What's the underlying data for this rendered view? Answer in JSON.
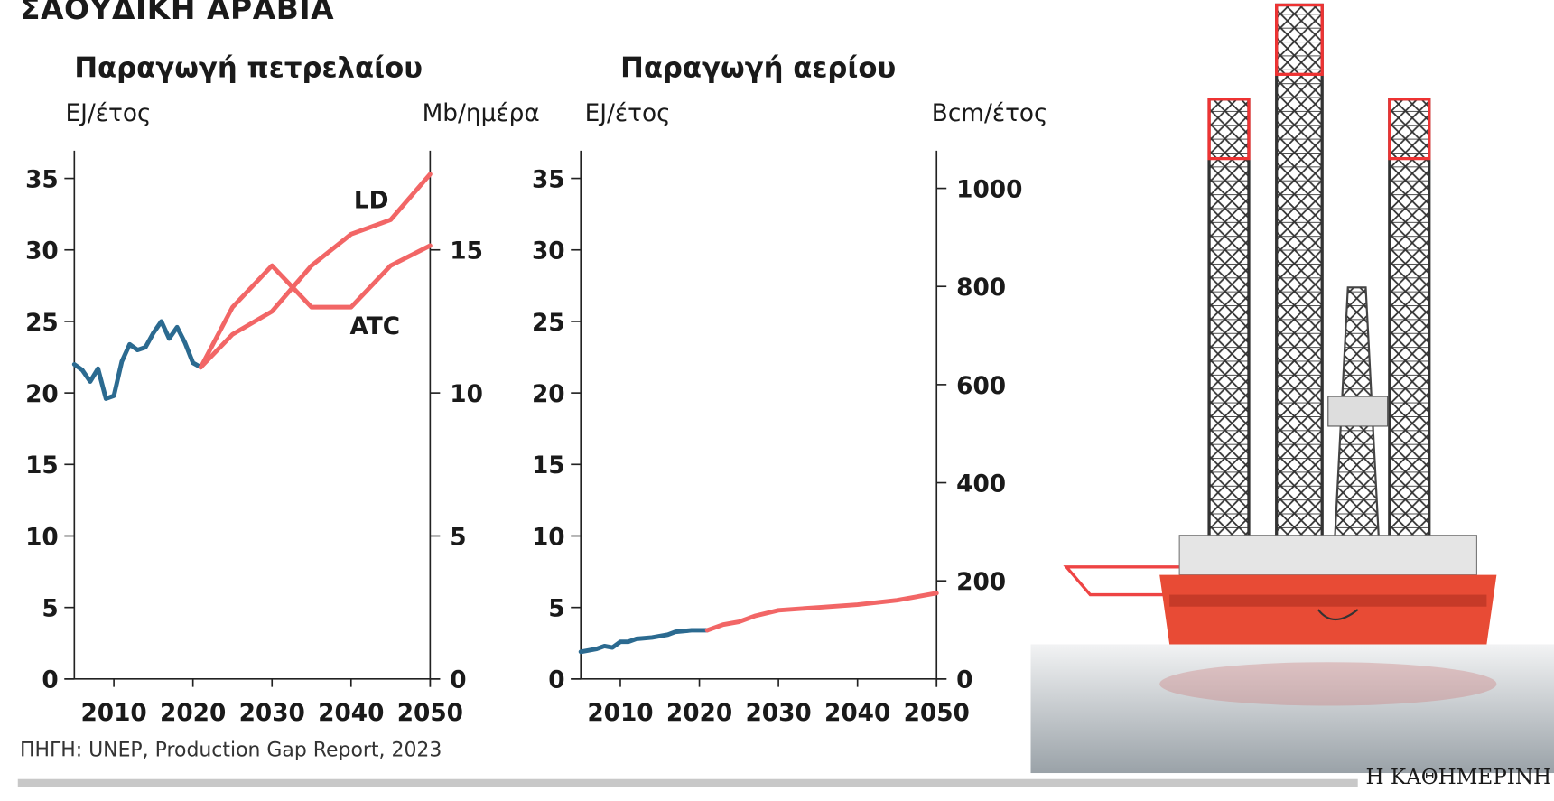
{
  "title": "ΣΑΟΥΔΙΚΗ ΑΡΑΒΙΑ",
  "source": "ΠΗΓΗ: UNEP, Production Gap Report, 2023",
  "logo": "Η ΚΑΘΗΜΕΡΙΝΗ",
  "colors": {
    "historical": "#2b6a90",
    "projection": "#f26666"
  },
  "chart_data": [
    {
      "type": "line",
      "title": "Παραγωγή πετρελαίου",
      "ylabel": "EJ/έτος",
      "ylabel_right": "Mb/ημέρα",
      "xlim": [
        2005,
        2050
      ],
      "ylim": [
        0,
        37
      ],
      "yticks": [
        0,
        5,
        10,
        15,
        20,
        25,
        30,
        35
      ],
      "yticks_right": [
        0,
        5,
        10,
        15
      ],
      "right_per_left": 0.5,
      "xticks": [
        2010,
        2020,
        2030,
        2040,
        2050
      ],
      "grid": false,
      "series": [
        {
          "kind": "historical",
          "x": [
            2005,
            2006,
            2007,
            2008,
            2009,
            2010,
            2011,
            2012,
            2013,
            2014,
            2015,
            2016,
            2017,
            2018,
            2019,
            2020,
            2021
          ],
          "y": [
            22.0,
            21.6,
            20.8,
            21.7,
            19.6,
            19.8,
            22.2,
            23.4,
            23.0,
            23.2,
            24.2,
            25.0,
            23.8,
            24.6,
            23.5,
            22.1,
            21.8
          ]
        },
        {
          "name": "LD",
          "kind": "projection",
          "x": [
            2021,
            2025,
            2030,
            2035,
            2040,
            2045,
            2050
          ],
          "y": [
            21.8,
            24.1,
            25.7,
            28.9,
            31.1,
            32.1,
            35.3
          ]
        },
        {
          "name": "ATC",
          "kind": "projection",
          "x": [
            2021,
            2025,
            2030,
            2035,
            2040,
            2045,
            2050
          ],
          "y": [
            21.8,
            26.0,
            28.9,
            26.0,
            26.0,
            28.9,
            30.3
          ]
        }
      ]
    },
    {
      "type": "line",
      "title": "Παραγωγή αερίου",
      "ylabel": "EJ/έτος",
      "ylabel_right": "Bcm/έτος",
      "xlim": [
        2005,
        2050
      ],
      "ylim": [
        0,
        37
      ],
      "yticks": [
        0,
        5,
        10,
        15,
        20,
        25,
        30,
        35
      ],
      "yticks_right": [
        0,
        200,
        400,
        600,
        800,
        1000
      ],
      "right_per_left": 29.15,
      "xticks": [
        2010,
        2020,
        2030,
        2040,
        2050
      ],
      "grid": false,
      "series": [
        {
          "kind": "historical",
          "x": [
            2005,
            2007,
            2008,
            2009,
            2010,
            2011,
            2012,
            2014,
            2016,
            2017,
            2019,
            2021
          ],
          "y": [
            1.9,
            2.1,
            2.3,
            2.2,
            2.6,
            2.6,
            2.8,
            2.9,
            3.1,
            3.3,
            3.4,
            3.4
          ]
        },
        {
          "kind": "projection",
          "x": [
            2021,
            2023,
            2025,
            2027,
            2030,
            2035,
            2040,
            2045,
            2050
          ],
          "y": [
            3.4,
            3.8,
            4.0,
            4.4,
            4.8,
            5.0,
            5.2,
            5.5,
            6.0
          ]
        }
      ]
    }
  ]
}
